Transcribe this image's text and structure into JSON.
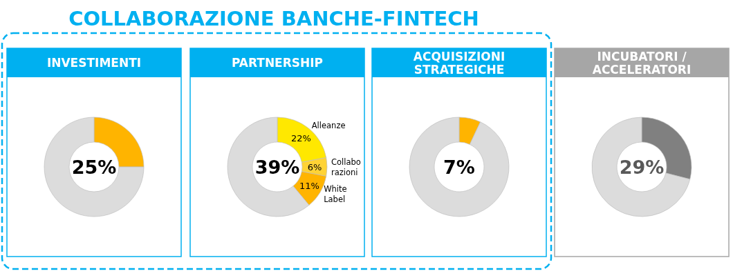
{
  "chart_data": [
    {
      "type": "other",
      "title": "COLLABORAZIONE BANCHE-FINTECH"
    },
    {
      "type": "donut",
      "title": "INVESTIMENTI",
      "categories": [
        null,
        null
      ],
      "values": [
        25,
        75
      ],
      "colors": [
        "#ffb400",
        "#dcdcdc"
      ],
      "annotations": [
        "25%"
      ]
    },
    {
      "type": "donut",
      "title": "PARTNERSHIP",
      "categories": [
        "Alleanze",
        "Collabo razioni",
        "White Label",
        null
      ],
      "values": [
        22,
        6,
        11,
        61
      ],
      "colors": [
        "#ffe800",
        "#ffd335",
        "#ffb400",
        "#dcdcdc"
      ],
      "value_labels": [
        "22%",
        "6%",
        "11%",
        null
      ],
      "annotations": [
        "39%"
      ]
    },
    {
      "type": "donut",
      "title": "ACQUISIZIONI STRATEGICHE",
      "categories": [
        null,
        null
      ],
      "values": [
        7,
        93
      ],
      "colors": [
        "#ffb400",
        "#dcdcdc"
      ],
      "annotations": [
        "7%"
      ]
    },
    {
      "type": "donut",
      "title": "INCUBATORI / ACCELERATORI",
      "categories": [
        null,
        null
      ],
      "values": [
        29,
        71
      ],
      "colors": [
        "#808080",
        "#dcdcdc"
      ],
      "annotations": [
        "29%"
      ]
    }
  ]
}
